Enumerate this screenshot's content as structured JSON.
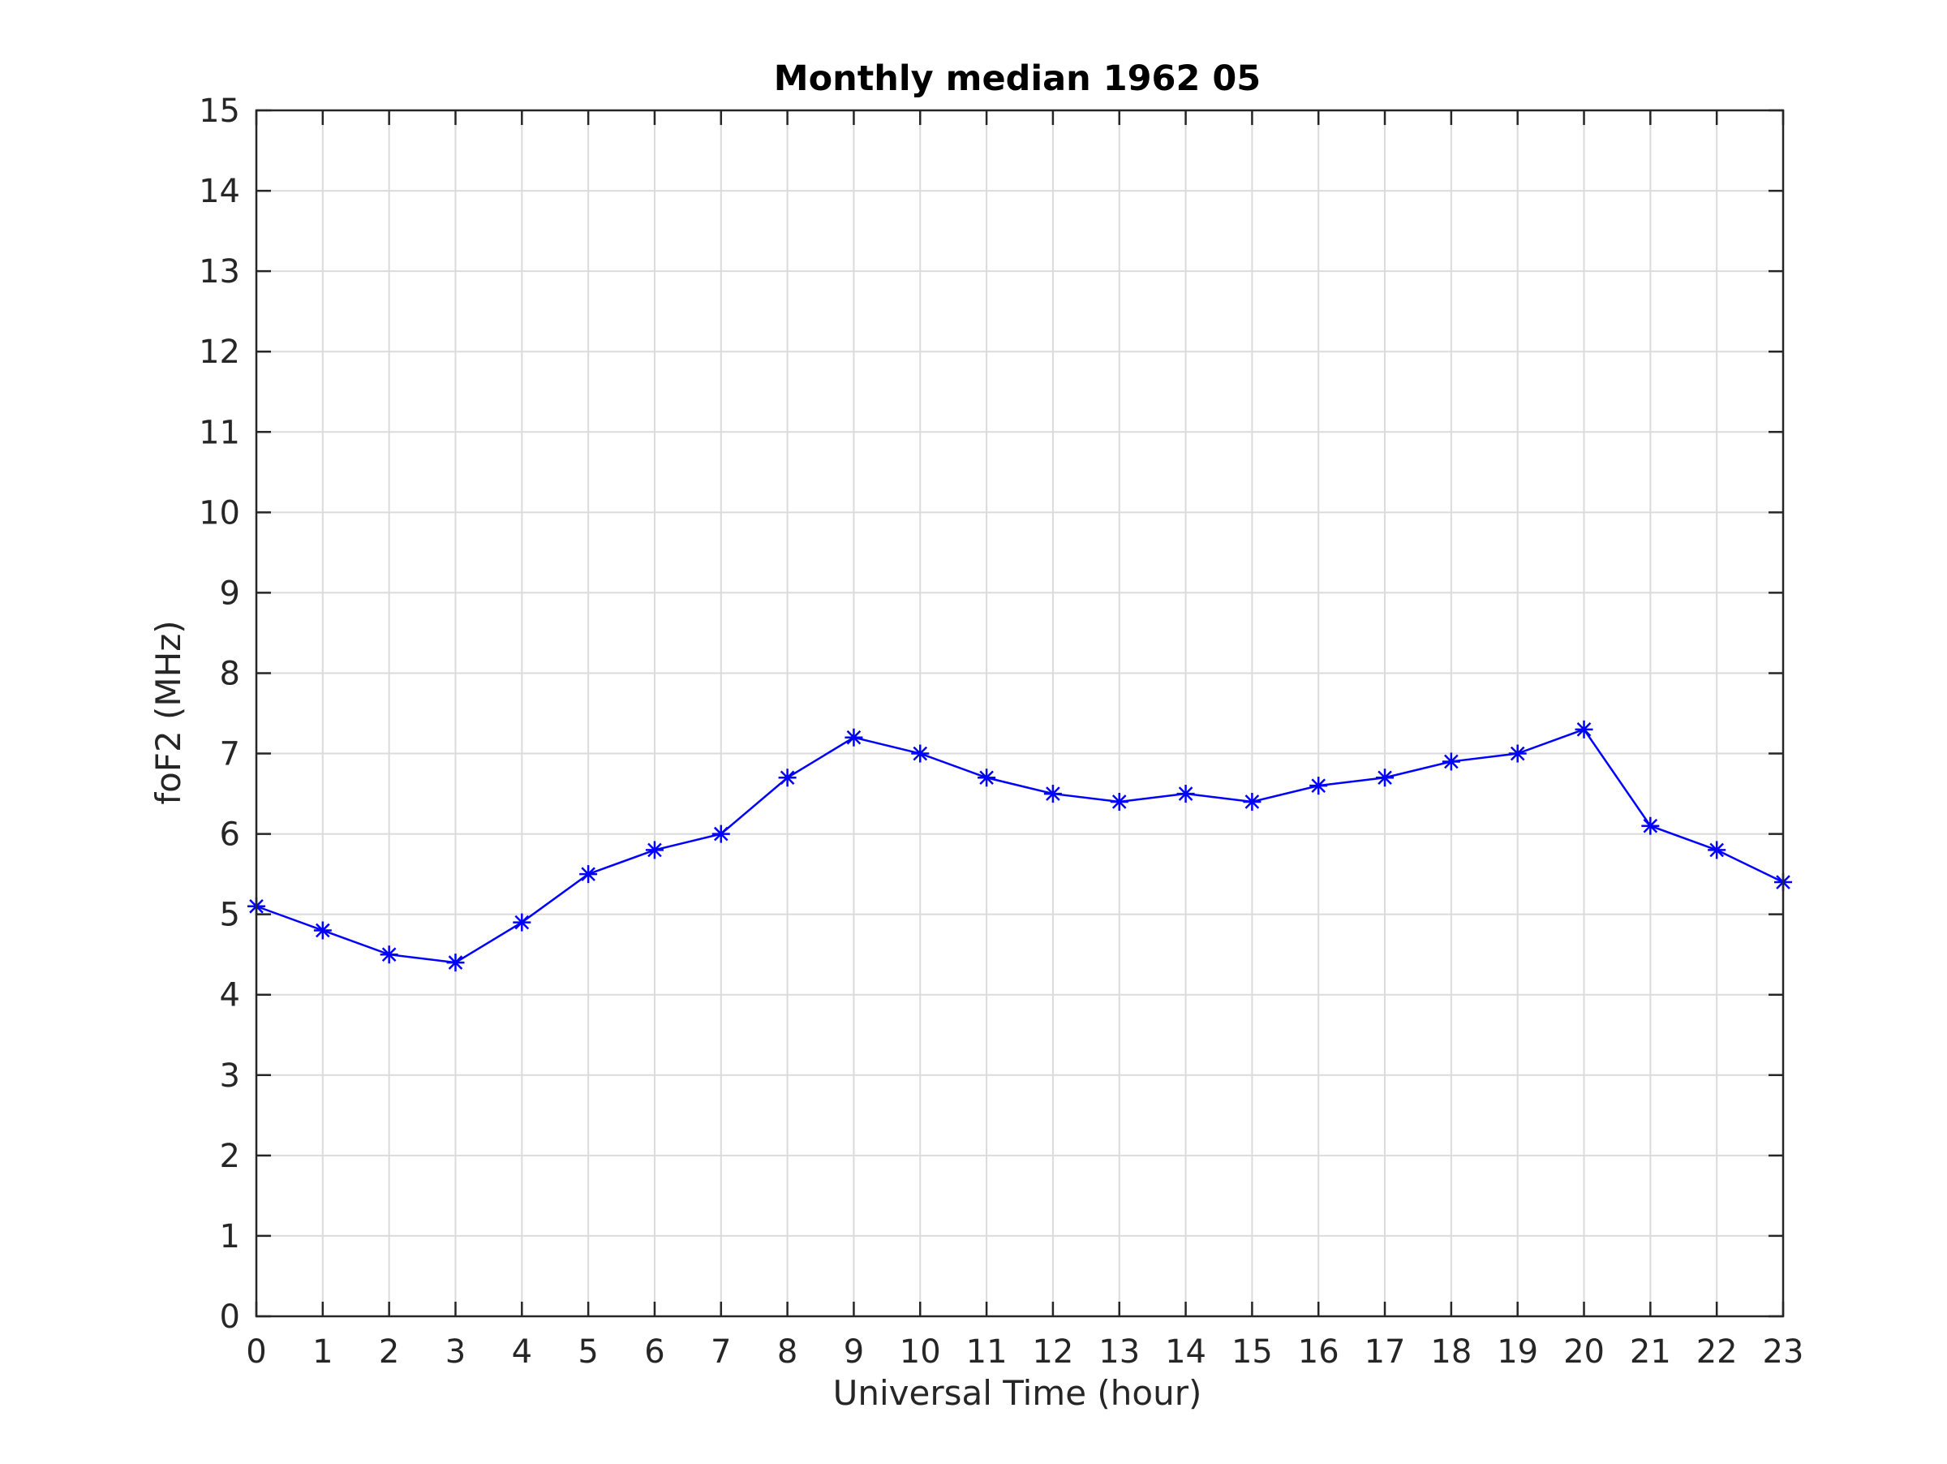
{
  "chart_data": {
    "type": "line",
    "title": "Monthly median 1962 05",
    "xlabel": "Universal Time (hour)",
    "ylabel": "foF2 (MHz)",
    "xlim": [
      0,
      23
    ],
    "ylim": [
      0,
      15
    ],
    "xticks": [
      0,
      1,
      2,
      3,
      4,
      5,
      6,
      7,
      8,
      9,
      10,
      11,
      12,
      13,
      14,
      15,
      16,
      17,
      18,
      19,
      20,
      21,
      22,
      23
    ],
    "yticks": [
      0,
      1,
      2,
      3,
      4,
      5,
      6,
      7,
      8,
      9,
      10,
      11,
      12,
      13,
      14,
      15
    ],
    "grid": true,
    "x": [
      0,
      1,
      2,
      3,
      4,
      5,
      6,
      7,
      8,
      9,
      10,
      11,
      12,
      13,
      14,
      15,
      16,
      17,
      18,
      19,
      20,
      21,
      22,
      23
    ],
    "series": [
      {
        "values": [
          5.1,
          4.8,
          4.5,
          4.4,
          4.9,
          5.5,
          5.8,
          6.0,
          6.7,
          7.2,
          7.0,
          6.7,
          6.5,
          6.4,
          6.5,
          6.4,
          6.6,
          6.7,
          6.9,
          7.0,
          7.3,
          6.1,
          5.8,
          5.4
        ],
        "color": "#0000ff",
        "marker": "asterisk"
      }
    ],
    "colors": {
      "axis": "#262626",
      "grid": "#dbdbdb"
    }
  }
}
